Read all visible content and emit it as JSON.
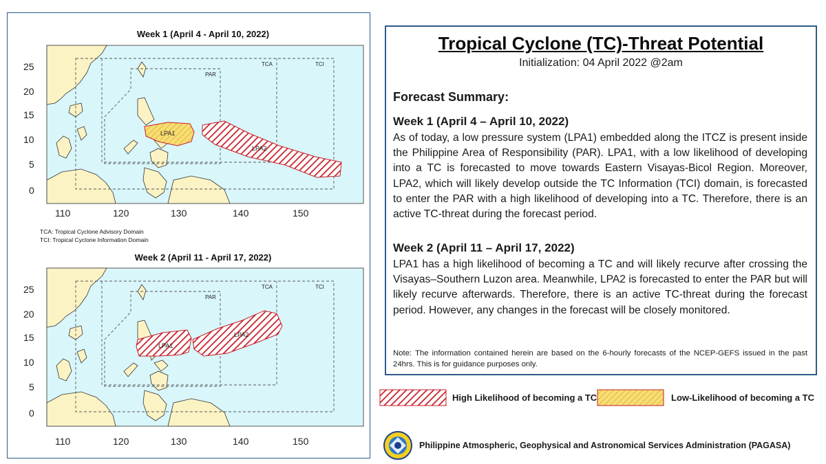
{
  "map_week1": {
    "title": "Week 1 (April 4 - April 10, 2022)",
    "lat_ticks": [
      "0",
      "5",
      "10",
      "15",
      "20",
      "25"
    ],
    "lon_ticks": [
      "110",
      "120",
      "130",
      "140",
      "150"
    ],
    "domain_labels": {
      "par": "PAR",
      "tca": "TCA",
      "tci": "TCI"
    },
    "systems": [
      {
        "label": "LPA1",
        "likelihood": "Low"
      },
      {
        "label": "LPA2",
        "likelihood": "High"
      }
    ]
  },
  "domain_notes": {
    "tca": "TCA: Tropical Cyclone Advisory Domain",
    "tci": "TCI: Tropical Cyclone Information Domain"
  },
  "map_week2": {
    "title": "Week 2 (April 11 - April 17, 2022)",
    "lat_ticks": [
      "0",
      "5",
      "10",
      "15",
      "20",
      "25"
    ],
    "lon_ticks": [
      "110",
      "120",
      "130",
      "140",
      "150"
    ],
    "domain_labels": {
      "par": "PAR",
      "tca": "TCA",
      "tci": "TCI"
    },
    "systems": [
      {
        "label": "LPA1",
        "likelihood": "High"
      },
      {
        "label": "LPA2",
        "likelihood": "High"
      }
    ]
  },
  "summary": {
    "title": "Tropical Cyclone (TC)-Threat Potential",
    "initialization": "Initialization: 04 April 2022 @2am",
    "heading": "Forecast Summary:",
    "week1_heading": "Week 1 (April 4 – April 10, 2022)",
    "week1_text": "As of today, a low pressure system (LPA1) embedded along the ITCZ is present inside the Philippine Area of Responsibility (PAR). LPA1, with a low  likelihood of developing into a TC is forecasted to move towards Eastern Visayas-Bicol Region. Moreover, LPA2, which will likely develop outside the TC Information (TCI) domain, is forecasted to enter the PAR with a high likelihood of developing into a TC. Therefore, there is an active TC-threat during the forecast period.",
    "week2_heading": "Week 2 (April 11  – April 17, 2022)",
    "week2_text": "LPA1 has a high likelihood of becoming a TC and will likely recurve after crossing the Visayas–Southern Luzon area. Meanwhile, LPA2 is forecasted to enter the PAR but will likely recurve afterwards. Therefore, there is an active TC-threat during the forecast period. However, any changes in the forecast will be closely monitored.",
    "note": "Note: The information contained herein are based on the 6-hourly forecasts of the NCEP-GEFS issued in the past 24hrs. This is for guidance purposes only."
  },
  "legend": {
    "high": "High Likelihood of becoming a TC",
    "low": "Low-Likelihood of becoming a TC"
  },
  "footer": {
    "agency": "Philippine Atmospheric, Geophysical and Astronomical Services Administration (PAGASA)",
    "logo_icon": "pagasa-logo-icon"
  },
  "colors": {
    "ocean": "#d9f6fb",
    "land": "#fbf3c4",
    "high_hatch": "#c81e28",
    "low_fill": "#f6df72",
    "frame": "#2e5a8a"
  }
}
